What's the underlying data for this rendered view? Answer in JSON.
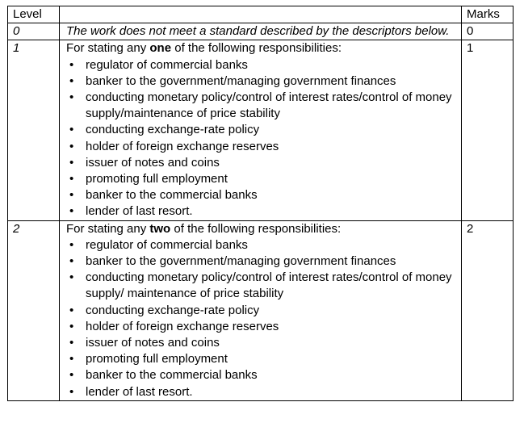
{
  "table": {
    "header": {
      "level": "Level",
      "description": "",
      "marks": "Marks"
    },
    "rows": [
      {
        "level": "0",
        "description": "The work does not meet a standard described by the descriptors below.",
        "marks": "0"
      },
      {
        "level": "1",
        "intro_before": "For stating any ",
        "intro_bold": "one",
        "intro_after": " of the following responsibilities:",
        "items": [
          "regulator of commercial banks",
          "banker to the government/managing government finances",
          "conducting monetary policy/control of interest rates/control of money supply/maintenance of price stability",
          "conducting exchange-rate policy",
          "holder of foreign exchange reserves",
          "issuer of notes and coins",
          "promoting full employment",
          "banker to the commercial banks",
          "lender of last resort."
        ],
        "marks": "1"
      },
      {
        "level": "2",
        "intro_before": "For stating any ",
        "intro_bold": "two",
        "intro_after": " of the following responsibilities:",
        "items": [
          "regulator of commercial banks",
          "banker to the government/managing government finances",
          "conducting monetary policy/control of interest rates/control of money supply/ maintenance of price stability",
          "conducting exchange-rate policy",
          "holder of foreign exchange reserves",
          "issuer of notes and coins",
          "promoting full employment",
          "banker to the commercial banks",
          "lender of last resort."
        ],
        "marks": "2"
      }
    ]
  }
}
